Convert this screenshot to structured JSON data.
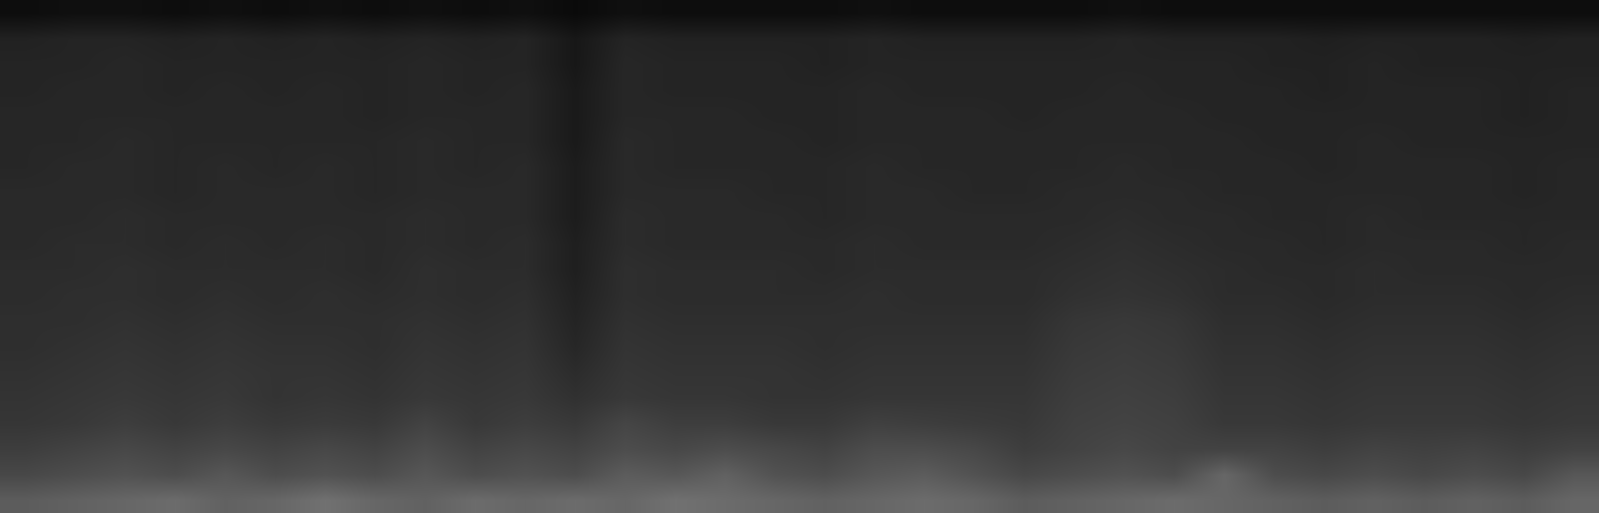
{
  "chart_data": {
    "type": "heatmap",
    "tick_labels": false,
    "zlim": [
      0,
      1
    ],
    "z": [
      [
        0.36,
        0.38,
        0.4,
        0.42,
        0.38,
        0.4,
        0.44,
        0.4,
        0.38,
        0.42,
        0.4,
        0.42,
        0.4,
        0.44,
        0.42,
        0.4,
        0.38,
        0.4,
        0.42,
        0.4,
        0.36,
        0.38,
        0.4,
        0.42,
        0.4,
        0.38,
        0.36,
        0.38,
        0.36,
        0.38,
        0.36,
        0.4
      ],
      [
        0.28,
        0.3,
        0.32,
        0.3,
        0.34,
        0.3,
        0.32,
        0.3,
        0.34,
        0.3,
        0.32,
        0.3,
        0.36,
        0.34,
        0.38,
        0.32,
        0.3,
        0.34,
        0.36,
        0.32,
        0.28,
        0.3,
        0.32,
        0.3,
        0.4,
        0.3,
        0.28,
        0.3,
        0.28,
        0.3,
        0.28,
        0.34
      ],
      [
        0.24,
        0.26,
        0.28,
        0.26,
        0.28,
        0.26,
        0.28,
        0.26,
        0.3,
        0.26,
        0.28,
        0.26,
        0.3,
        0.28,
        0.3,
        0.28,
        0.26,
        0.3,
        0.3,
        0.28,
        0.24,
        0.26,
        0.28,
        0.26,
        0.26,
        0.26,
        0.24,
        0.26,
        0.25,
        0.26,
        0.24,
        0.26
      ],
      [
        0.21,
        0.22,
        0.24,
        0.22,
        0.24,
        0.22,
        0.23,
        0.22,
        0.26,
        0.22,
        0.24,
        0.22,
        0.27,
        0.24,
        0.24,
        0.22,
        0.22,
        0.25,
        0.24,
        0.23,
        0.22,
        0.25,
        0.26,
        0.25,
        0.22,
        0.22,
        0.21,
        0.22,
        0.22,
        0.22,
        0.21,
        0.22
      ],
      [
        0.2,
        0.21,
        0.22,
        0.21,
        0.22,
        0.2,
        0.21,
        0.2,
        0.22,
        0.21,
        0.22,
        0.19,
        0.22,
        0.21,
        0.21,
        0.2,
        0.2,
        0.21,
        0.21,
        0.21,
        0.21,
        0.24,
        0.25,
        0.24,
        0.21,
        0.21,
        0.2,
        0.21,
        0.21,
        0.21,
        0.2,
        0.21
      ],
      [
        0.19,
        0.2,
        0.21,
        0.2,
        0.21,
        0.2,
        0.2,
        0.19,
        0.21,
        0.2,
        0.21,
        0.17,
        0.21,
        0.2,
        0.2,
        0.2,
        0.19,
        0.2,
        0.2,
        0.2,
        0.2,
        0.23,
        0.24,
        0.23,
        0.2,
        0.2,
        0.19,
        0.2,
        0.2,
        0.2,
        0.19,
        0.2
      ],
      [
        0.18,
        0.19,
        0.2,
        0.19,
        0.2,
        0.19,
        0.19,
        0.18,
        0.2,
        0.19,
        0.2,
        0.15,
        0.2,
        0.19,
        0.19,
        0.19,
        0.18,
        0.19,
        0.19,
        0.19,
        0.19,
        0.22,
        0.23,
        0.22,
        0.19,
        0.19,
        0.18,
        0.19,
        0.19,
        0.19,
        0.18,
        0.19
      ],
      [
        0.18,
        0.18,
        0.19,
        0.18,
        0.19,
        0.18,
        0.18,
        0.18,
        0.19,
        0.18,
        0.19,
        0.14,
        0.19,
        0.18,
        0.18,
        0.18,
        0.18,
        0.18,
        0.18,
        0.18,
        0.18,
        0.21,
        0.22,
        0.21,
        0.18,
        0.18,
        0.17,
        0.18,
        0.18,
        0.18,
        0.17,
        0.18
      ],
      [
        0.17,
        0.18,
        0.18,
        0.17,
        0.18,
        0.17,
        0.18,
        0.17,
        0.18,
        0.17,
        0.18,
        0.13,
        0.18,
        0.17,
        0.17,
        0.17,
        0.17,
        0.18,
        0.17,
        0.17,
        0.17,
        0.19,
        0.2,
        0.19,
        0.17,
        0.17,
        0.16,
        0.17,
        0.17,
        0.17,
        0.16,
        0.17
      ],
      [
        0.17,
        0.17,
        0.18,
        0.17,
        0.17,
        0.17,
        0.17,
        0.16,
        0.18,
        0.17,
        0.17,
        0.12,
        0.18,
        0.17,
        0.17,
        0.17,
        0.16,
        0.17,
        0.17,
        0.17,
        0.17,
        0.18,
        0.19,
        0.18,
        0.17,
        0.16,
        0.16,
        0.17,
        0.16,
        0.16,
        0.16,
        0.16
      ],
      [
        0.16,
        0.17,
        0.17,
        0.16,
        0.17,
        0.16,
        0.17,
        0.16,
        0.17,
        0.16,
        0.17,
        0.12,
        0.17,
        0.16,
        0.16,
        0.16,
        0.16,
        0.17,
        0.16,
        0.16,
        0.16,
        0.17,
        0.18,
        0.17,
        0.16,
        0.16,
        0.15,
        0.16,
        0.16,
        0.16,
        0.15,
        0.16
      ],
      [
        0.16,
        0.16,
        0.17,
        0.16,
        0.16,
        0.16,
        0.16,
        0.16,
        0.17,
        0.16,
        0.16,
        0.11,
        0.17,
        0.16,
        0.16,
        0.16,
        0.15,
        0.16,
        0.16,
        0.16,
        0.16,
        0.16,
        0.17,
        0.16,
        0.16,
        0.15,
        0.15,
        0.16,
        0.15,
        0.15,
        0.15,
        0.15
      ],
      [
        0.16,
        0.16,
        0.16,
        0.15,
        0.16,
        0.16,
        0.16,
        0.15,
        0.16,
        0.16,
        0.16,
        0.11,
        0.16,
        0.16,
        0.16,
        0.15,
        0.15,
        0.16,
        0.16,
        0.15,
        0.15,
        0.16,
        0.16,
        0.16,
        0.15,
        0.15,
        0.15,
        0.15,
        0.15,
        0.15,
        0.14,
        0.15
      ],
      [
        0.15,
        0.16,
        0.16,
        0.15,
        0.16,
        0.15,
        0.16,
        0.15,
        0.16,
        0.15,
        0.16,
        0.11,
        0.16,
        0.15,
        0.15,
        0.15,
        0.15,
        0.16,
        0.15,
        0.15,
        0.15,
        0.15,
        0.16,
        0.15,
        0.15,
        0.15,
        0.14,
        0.15,
        0.15,
        0.15,
        0.14,
        0.15
      ],
      [
        0.15,
        0.15,
        0.16,
        0.15,
        0.15,
        0.15,
        0.15,
        0.15,
        0.16,
        0.15,
        0.15,
        0.1,
        0.16,
        0.15,
        0.15,
        0.15,
        0.14,
        0.15,
        0.15,
        0.15,
        0.15,
        0.15,
        0.15,
        0.15,
        0.15,
        0.14,
        0.14,
        0.15,
        0.14,
        0.14,
        0.14,
        0.14
      ],
      [
        0.15,
        0.15,
        0.15,
        0.15,
        0.15,
        0.15,
        0.15,
        0.14,
        0.15,
        0.15,
        0.15,
        0.1,
        0.15,
        0.15,
        0.15,
        0.14,
        0.14,
        0.15,
        0.15,
        0.15,
        0.14,
        0.15,
        0.15,
        0.15,
        0.14,
        0.14,
        0.14,
        0.14,
        0.14,
        0.14,
        0.13,
        0.14
      ],
      [
        0.14,
        0.15,
        0.15,
        0.14,
        0.15,
        0.14,
        0.15,
        0.14,
        0.15,
        0.14,
        0.15,
        0.1,
        0.15,
        0.14,
        0.14,
        0.14,
        0.14,
        0.15,
        0.14,
        0.14,
        0.14,
        0.14,
        0.15,
        0.14,
        0.14,
        0.14,
        0.13,
        0.14,
        0.14,
        0.14,
        0.13,
        0.14
      ],
      [
        0.14,
        0.14,
        0.15,
        0.14,
        0.14,
        0.14,
        0.14,
        0.14,
        0.15,
        0.14,
        0.14,
        0.09,
        0.15,
        0.14,
        0.14,
        0.14,
        0.13,
        0.14,
        0.14,
        0.14,
        0.14,
        0.14,
        0.14,
        0.14,
        0.14,
        0.13,
        0.13,
        0.14,
        0.13,
        0.13,
        0.13,
        0.13
      ],
      [
        0.13,
        0.14,
        0.14,
        0.13,
        0.14,
        0.13,
        0.14,
        0.13,
        0.14,
        0.13,
        0.14,
        0.09,
        0.14,
        0.13,
        0.13,
        0.13,
        0.13,
        0.14,
        0.13,
        0.13,
        0.13,
        0.13,
        0.14,
        0.13,
        0.13,
        0.13,
        0.12,
        0.13,
        0.13,
        0.13,
        0.12,
        0.13
      ],
      [
        0.05,
        0.06,
        0.06,
        0.05,
        0.06,
        0.05,
        0.06,
        0.05,
        0.06,
        0.05,
        0.06,
        0.04,
        0.06,
        0.05,
        0.05,
        0.05,
        0.05,
        0.06,
        0.05,
        0.05,
        0.05,
        0.05,
        0.06,
        0.05,
        0.05,
        0.05,
        0.05,
        0.05,
        0.05,
        0.05,
        0.05,
        0.05
      ]
    ]
  }
}
